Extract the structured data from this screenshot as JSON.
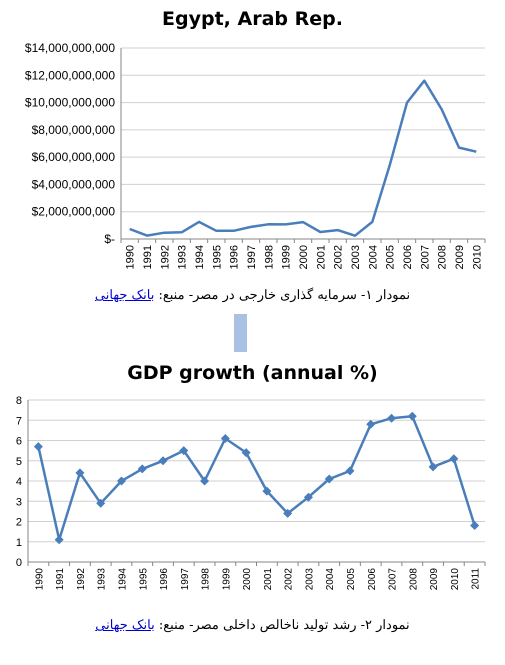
{
  "chart_data": [
    {
      "type": "line",
      "title": "Egypt, Arab Rep.",
      "x": [
        "1990",
        "1991",
        "1992",
        "1993",
        "1994",
        "1995",
        "1996",
        "1997",
        "1998",
        "1999",
        "2000",
        "2001",
        "2002",
        "2003",
        "2004",
        "2005",
        "2006",
        "2007",
        "2008",
        "2009",
        "2010"
      ],
      "series": [
        {
          "values": [
            730000000,
            250000000,
            460000000,
            490000000,
            1250000000,
            600000000,
            600000000,
            890000000,
            1080000000,
            1070000000,
            1240000000,
            510000000,
            650000000,
            240000000,
            1250000000,
            5400000000,
            10000000000,
            11600000000,
            9500000000,
            6700000000,
            6400000000
          ]
        }
      ],
      "ylim": [
        0,
        14000000000
      ],
      "yticks": [
        "$-",
        "$2,000,000,000",
        "$4,000,000,000",
        "$6,000,000,000",
        "$8,000,000,000",
        "$10,000,000,000",
        "$12,000,000,000",
        "$14,000,000,000"
      ],
      "grid": true,
      "color": "#4a7ebb"
    },
    {
      "type": "line",
      "title": "GDP growth (annual %)",
      "x": [
        "1990",
        "1991",
        "1992",
        "1993",
        "1994",
        "1995",
        "1996",
        "1997",
        "1998",
        "1999",
        "2000",
        "2001",
        "2002",
        "2003",
        "2004",
        "2005",
        "2006",
        "2007",
        "2008",
        "2009",
        "2010",
        "2011"
      ],
      "series": [
        {
          "values": [
            5.7,
            1.1,
            4.4,
            2.9,
            4.0,
            4.6,
            5.0,
            5.5,
            4.0,
            6.1,
            5.4,
            3.5,
            2.4,
            3.2,
            4.1,
            4.5,
            6.8,
            7.1,
            7.2,
            4.7,
            5.1,
            1.8
          ]
        }
      ],
      "ylim": [
        0,
        8
      ],
      "yticks": [
        "0",
        "1",
        "2",
        "3",
        "4",
        "5",
        "6",
        "7",
        "8"
      ],
      "grid": true,
      "markers": "diamond",
      "color": "#4a7ebb"
    }
  ],
  "captions": {
    "c1_text": "نمودار ۱- سرمایه گذاری خارجی در مصر- منبع: ",
    "c1_link": "بانک جهانی",
    "c2_text": "نمودار ۲- رشد تولید ناخالص داخلی مصر- منبع: ",
    "c2_link": "بانک جهانی"
  }
}
